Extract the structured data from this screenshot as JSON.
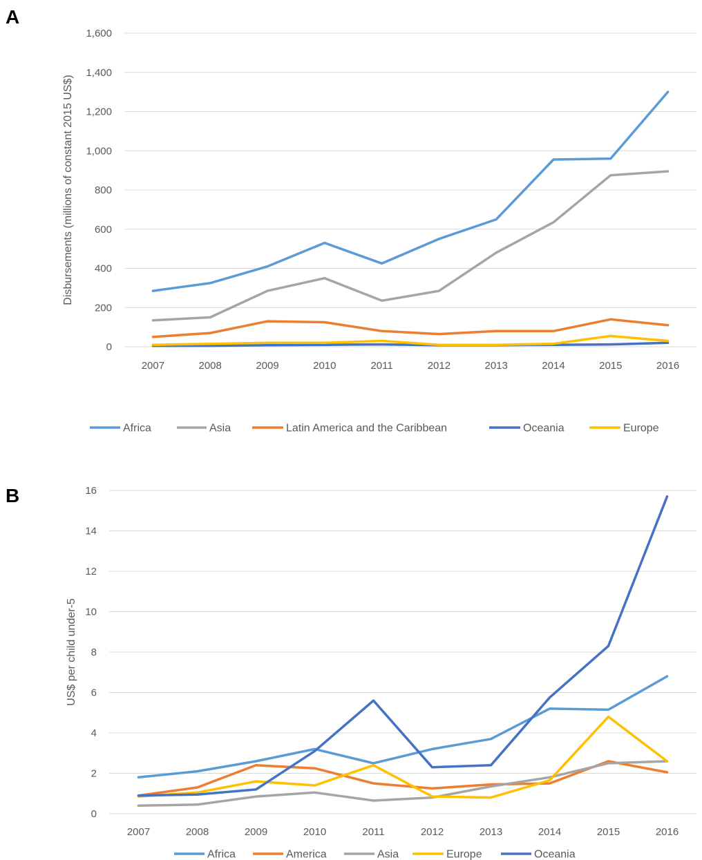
{
  "panels": {
    "a": {
      "letter": "A"
    },
    "b": {
      "letter": "B"
    }
  },
  "chart_data": [
    {
      "type": "line",
      "ylabel": "Disbursements (millions of constant 2015 US$)",
      "xlabel": "",
      "categories": [
        "2007",
        "2008",
        "2009",
        "2010",
        "2011",
        "2012",
        "2013",
        "2014",
        "2015",
        "2016"
      ],
      "ylim": [
        0,
        1600
      ],
      "yticks": [
        0,
        200,
        400,
        600,
        800,
        1000,
        1200,
        1400,
        1600
      ],
      "ytick_labels": [
        "0",
        "200",
        "400",
        "600",
        "800",
        "1,000",
        "1,200",
        "1,400",
        "1,600"
      ],
      "grid": true,
      "legend_position": "bottom",
      "series": [
        {
          "name": "Africa",
          "color": "#5b9bd5",
          "values": [
            285,
            325,
            410,
            530,
            425,
            550,
            650,
            955,
            960,
            1300
          ]
        },
        {
          "name": "Asia",
          "color": "#a5a5a5",
          "values": [
            135,
            150,
            285,
            350,
            235,
            285,
            480,
            635,
            875,
            895
          ]
        },
        {
          "name": "Latin America and the Caribbean",
          "color": "#ed7d31",
          "values": [
            50,
            70,
            130,
            125,
            80,
            65,
            80,
            80,
            140,
            110
          ]
        },
        {
          "name": "Oceania",
          "color": "#4472c4",
          "values": [
            5,
            5,
            8,
            10,
            12,
            8,
            8,
            10,
            12,
            20
          ]
        },
        {
          "name": "Europe",
          "color": "#ffc000",
          "values": [
            10,
            15,
            20,
            20,
            30,
            10,
            10,
            15,
            55,
            30
          ]
        }
      ]
    },
    {
      "type": "line",
      "ylabel": "US$ per child under-5",
      "xlabel": "",
      "categories": [
        "2007",
        "2008",
        "2009",
        "2010",
        "2011",
        "2012",
        "2013",
        "2014",
        "2015",
        "2016"
      ],
      "ylim": [
        0,
        16
      ],
      "yticks": [
        0,
        2,
        4,
        6,
        8,
        10,
        12,
        14,
        16
      ],
      "ytick_labels": [
        "0",
        "2",
        "4",
        "6",
        "8",
        "10",
        "12",
        "14",
        "16"
      ],
      "grid": true,
      "legend_position": "bottom",
      "series": [
        {
          "name": "Africa",
          "color": "#5b9bd5",
          "values": [
            1.8,
            2.1,
            2.6,
            3.2,
            2.5,
            3.2,
            3.7,
            5.2,
            5.15,
            6.8
          ]
        },
        {
          "name": "America",
          "color": "#ed7d31",
          "values": [
            0.9,
            1.3,
            2.4,
            2.25,
            1.5,
            1.25,
            1.45,
            1.5,
            2.6,
            2.05
          ]
        },
        {
          "name": "Asia",
          "color": "#a5a5a5",
          "values": [
            0.4,
            0.45,
            0.85,
            1.05,
            0.65,
            0.8,
            1.35,
            1.8,
            2.5,
            2.6
          ]
        },
        {
          "name": "Europe",
          "color": "#ffc000",
          "values": [
            0.85,
            1.05,
            1.6,
            1.4,
            2.4,
            0.85,
            0.8,
            1.65,
            4.8,
            2.6
          ]
        },
        {
          "name": "Oceania",
          "color": "#4472c4",
          "values": [
            0.9,
            0.95,
            1.2,
            3.1,
            5.6,
            2.3,
            2.4,
            5.75,
            8.3,
            15.7
          ]
        }
      ]
    }
  ]
}
